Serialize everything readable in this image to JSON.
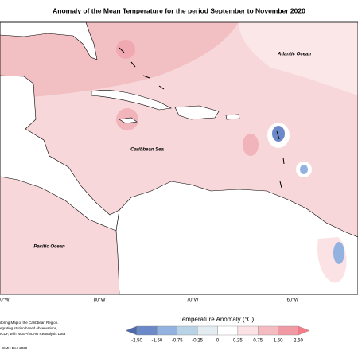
{
  "title": "Anomaly of the Mean Temperature for the period September to November 2020",
  "labels": {
    "atlantic": "Atlantic Ocean",
    "caribbean": "Caribbean Sea",
    "pacific": "Pacific Ocean"
  },
  "longitudes": [
    "0°W",
    "80°W",
    "70°W",
    "60°W"
  ],
  "colorbar": {
    "title": "Temperature Anomaly (°C)",
    "ticks": [
      "-2.50",
      "-1.50",
      "-0.75",
      "-0.25",
      "0",
      "0.25",
      "0.75",
      "1.50",
      "2.50"
    ],
    "colors": [
      "#4e6aa8",
      "#6b88c8",
      "#93b2e0",
      "#b8d3e6",
      "#e3edf1",
      "#ffffff",
      "#fbe3e5",
      "#f4bcc1",
      "#f29aa3",
      "#f77c88"
    ]
  },
  "notes": [
    "itoring Map of the Caribbean Region.",
    "egrating station based observations,",
    "ICDF, with NCEP/NCAR Reanalysis Data"
  ],
  "credit": "CIMH Dec-2020"
}
